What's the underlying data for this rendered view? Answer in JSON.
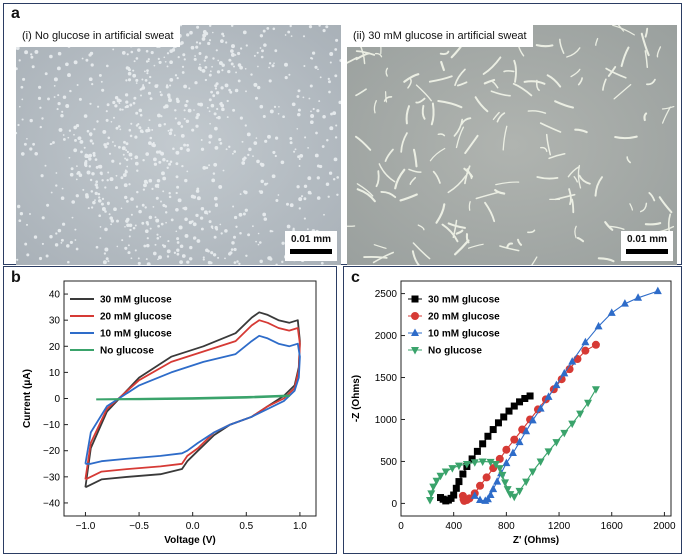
{
  "panel_a": {
    "letter": "a",
    "left_image": {
      "caption": "(i) No glucose in artificial sweat",
      "scale_label": "0.01 mm"
    },
    "right_image": {
      "caption": "(ii) 30 mM glucose in artificial sweat",
      "scale_label": "0.01 mm"
    }
  },
  "panel_b": {
    "letter": "b"
  },
  "panel_c": {
    "letter": "c"
  },
  "colors": {
    "border": "#2b3d63",
    "black_series": "#3a3a3a",
    "red_series": "#d63a35",
    "blue_series": "#2e6cc9",
    "green_series": "#3aa36b"
  },
  "chart_data": [
    {
      "type": "line",
      "xlabel": "Voltage (V)",
      "ylabel": "Current (μA)",
      "xlim": [
        -1.2,
        1.15
      ],
      "ylim": [
        -45,
        45
      ],
      "xticks": [
        -1.0,
        -0.5,
        0.0,
        0.5,
        1.0
      ],
      "xtick_labels": [
        "−1.0",
        "−0.5",
        "0.0",
        "0.5",
        "1.0"
      ],
      "yticks": [
        40,
        30,
        20,
        10,
        0,
        -10,
        -20,
        -30,
        -40
      ],
      "ytick_labels": [
        "40",
        "30",
        "20",
        "10",
        "0",
        "−10",
        "−20",
        "−30",
        "−40"
      ],
      "legend_position": "top-left",
      "grid": false,
      "series": [
        {
          "name": "30 mM glucose",
          "color": "#3a3a3a",
          "x": [
            -1.0,
            -0.95,
            -0.8,
            -0.5,
            -0.2,
            0.1,
            0.4,
            0.55,
            0.62,
            0.7,
            0.8,
            0.9,
            0.98,
            1.0,
            0.99,
            0.95,
            0.85,
            0.7,
            0.55,
            0.35,
            0.2,
            0.05,
            -0.05,
            -0.1,
            -0.3,
            -0.6,
            -0.85,
            -0.95,
            -1.0
          ],
          "y": [
            -34,
            -19,
            -5,
            8,
            16,
            20,
            25,
            31,
            33,
            32,
            30,
            29,
            30,
            22,
            12,
            5,
            1,
            -3,
            -7,
            -10,
            -14,
            -20,
            -24,
            -27,
            -29,
            -30,
            -31,
            -33,
            -34
          ]
        },
        {
          "name": "20 mM glucose",
          "color": "#d63a35",
          "x": [
            -1.0,
            -0.95,
            -0.8,
            -0.5,
            -0.2,
            0.1,
            0.4,
            0.55,
            0.62,
            0.7,
            0.8,
            0.9,
            0.98,
            1.0,
            0.99,
            0.95,
            0.85,
            0.7,
            0.55,
            0.35,
            0.2,
            0.05,
            -0.05,
            -0.1,
            -0.3,
            -0.6,
            -0.85,
            -0.95,
            -1.0
          ],
          "y": [
            -31,
            -17,
            -4,
            7,
            14,
            18,
            22,
            28,
            30,
            29,
            27,
            26,
            27,
            21,
            11,
            4,
            0,
            -3,
            -7,
            -10,
            -13,
            -19,
            -22,
            -25,
            -26,
            -27,
            -28,
            -30,
            -31
          ]
        },
        {
          "name": "10 mM glucose",
          "color": "#2e6cc9",
          "x": [
            -1.0,
            -0.95,
            -0.8,
            -0.5,
            -0.2,
            0.1,
            0.4,
            0.55,
            0.62,
            0.7,
            0.8,
            0.9,
            0.98,
            1.0,
            0.99,
            0.95,
            0.85,
            0.7,
            0.55,
            0.35,
            0.2,
            0.05,
            -0.05,
            -0.1,
            -0.3,
            -0.6,
            -0.85,
            -0.95,
            -1.0
          ],
          "y": [
            -25,
            -13,
            -3,
            5,
            10,
            14,
            17,
            22,
            24,
            23,
            21,
            20,
            21,
            16,
            8,
            3,
            -1,
            -4,
            -7,
            -10,
            -13,
            -17,
            -20,
            -21,
            -22,
            -23,
            -24,
            -25,
            -25
          ]
        },
        {
          "name": "No glucose",
          "color": "#3aa36b",
          "x": [
            -0.9,
            -0.5,
            0.0,
            0.5,
            0.9,
            0.9,
            0.5,
            0.0,
            -0.5,
            -0.9
          ],
          "y": [
            -0.3,
            -0.1,
            0.2,
            0.6,
            1.2,
            0.9,
            0.3,
            -0.1,
            -0.3,
            -0.4
          ]
        }
      ]
    },
    {
      "type": "scatter",
      "xlabel": "Z' (Ohms)",
      "ylabel": "-Z (Ohms)",
      "xlim": [
        0,
        2050
      ],
      "ylim": [
        -150,
        2650
      ],
      "xticks": [
        0,
        400,
        800,
        1200,
        1600,
        2000
      ],
      "xtick_labels": [
        "0",
        "400",
        "800",
        "1200",
        "1600",
        "2000"
      ],
      "yticks": [
        0,
        500,
        1000,
        1500,
        2000,
        2500
      ],
      "ytick_labels": [
        "0",
        "500",
        "1000",
        "1500",
        "2000",
        "2500"
      ],
      "legend_position": "top-left",
      "grid": false,
      "series": [
        {
          "name": "30 mM glucose",
          "color": "#000000",
          "marker": "square",
          "x": [
            300,
            320,
            340,
            360,
            380,
            400,
            420,
            440,
            470,
            500,
            540,
            580,
            620,
            660,
            700,
            740,
            780,
            820,
            860,
            900,
            940,
            980
          ],
          "y": [
            70,
            50,
            30,
            40,
            60,
            100,
            180,
            260,
            350,
            440,
            530,
            620,
            710,
            800,
            880,
            960,
            1030,
            1100,
            1160,
            1210,
            1250,
            1280
          ]
        },
        {
          "name": "20 mM glucose",
          "color": "#d63a35",
          "marker": "circle",
          "x": [
            470,
            475,
            480,
            500,
            520,
            560,
            600,
            650,
            700,
            750,
            800,
            860,
            920,
            980,
            1040,
            1100,
            1160,
            1220,
            1280,
            1340,
            1400,
            1480
          ],
          "y": [
            90,
            50,
            30,
            40,
            60,
            120,
            210,
            310,
            420,
            530,
            640,
            760,
            880,
            1000,
            1120,
            1240,
            1360,
            1480,
            1600,
            1720,
            1820,
            1890
          ]
        },
        {
          "name": "10 mM glucose",
          "color": "#2e6cc9",
          "marker": "triangle",
          "x": [
            560,
            600,
            640,
            660,
            680,
            700,
            730,
            760,
            800,
            850,
            900,
            950,
            1000,
            1060,
            1120,
            1180,
            1240,
            1300,
            1400,
            1500,
            1600,
            1700,
            1800,
            1950
          ],
          "y": [
            90,
            40,
            30,
            50,
            100,
            170,
            260,
            360,
            480,
            600,
            730,
            860,
            990,
            1130,
            1270,
            1410,
            1550,
            1690,
            1920,
            2110,
            2270,
            2380,
            2450,
            2530
          ]
        },
        {
          "name": "No glucose",
          "color": "#3aa36b",
          "marker": "triangle-down",
          "x": [
            220,
            230,
            245,
            270,
            300,
            340,
            390,
            440,
            500,
            560,
            620,
            680,
            720,
            750,
            770,
            790,
            810,
            830,
            860,
            900,
            950,
            1000,
            1060,
            1120,
            1180,
            1240,
            1300,
            1360,
            1420,
            1480
          ],
          "y": [
            40,
            120,
            200,
            270,
            330,
            380,
            420,
            450,
            470,
            490,
            500,
            495,
            470,
            420,
            340,
            250,
            170,
            110,
            80,
            150,
            260,
            380,
            500,
            620,
            730,
            840,
            950,
            1070,
            1200,
            1360
          ]
        }
      ]
    }
  ]
}
